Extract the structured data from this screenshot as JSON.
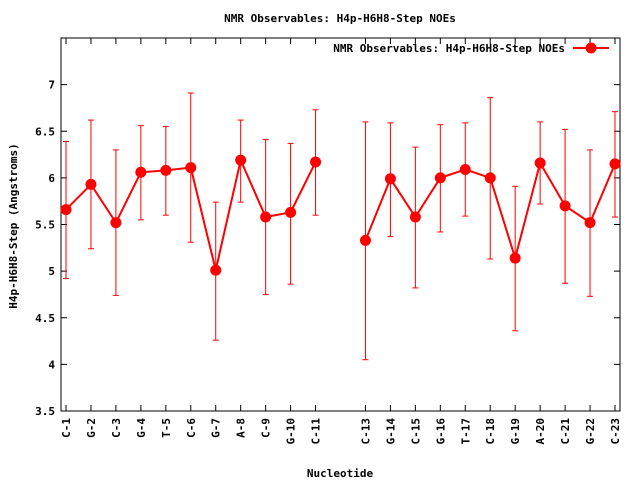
{
  "chart_data": {
    "type": "line",
    "title": "NMR Observables: H4p-H6H8-Step NOEs",
    "xlabel": "Nucleotide",
    "ylabel": "H4p-H6H8-Step (Angstroms)",
    "ylim": [
      3.5,
      7.5
    ],
    "yticks": [
      "3.5",
      "4",
      "4.5",
      "5",
      "5.5",
      "6",
      "6.5",
      "7"
    ],
    "grid": false,
    "legend_position": "top-right",
    "color": "#ff0000",
    "categories": [
      "C-1",
      "G-2",
      "C-3",
      "G-4",
      "T-5",
      "C-6",
      "G-7",
      "A-8",
      "C-9",
      "G-10",
      "C-11",
      "C-13",
      "G-14",
      "C-15",
      "G-16",
      "T-17",
      "C-18",
      "G-19",
      "A-20",
      "C-21",
      "G-22",
      "C-23"
    ],
    "x": [
      1,
      2,
      3,
      4,
      5,
      6,
      7,
      8,
      9,
      10,
      11,
      13,
      14,
      15,
      16,
      17,
      18,
      19,
      20,
      21,
      22,
      23
    ],
    "series": [
      {
        "name": "NMR Observables: H4p-H6H8-Step NOEs",
        "values": [
          5.66,
          5.93,
          5.52,
          6.06,
          6.08,
          6.11,
          5.01,
          6.19,
          5.58,
          5.63,
          6.17,
          5.33,
          5.99,
          5.58,
          6.0,
          6.09,
          6.0,
          5.14,
          6.16,
          5.7,
          5.52,
          6.15
        ],
        "error_low": [
          4.92,
          5.24,
          4.74,
          5.55,
          5.6,
          5.31,
          4.26,
          5.74,
          4.75,
          4.86,
          5.6,
          4.05,
          5.37,
          4.82,
          5.42,
          5.59,
          5.13,
          4.36,
          5.72,
          4.87,
          4.73,
          5.58
        ],
        "error_high": [
          6.39,
          6.62,
          6.3,
          6.56,
          6.55,
          6.91,
          5.74,
          6.62,
          6.41,
          6.37,
          6.73,
          6.6,
          6.59,
          6.33,
          6.57,
          6.59,
          6.86,
          5.91,
          6.6,
          6.52,
          6.3,
          6.71
        ]
      }
    ]
  }
}
